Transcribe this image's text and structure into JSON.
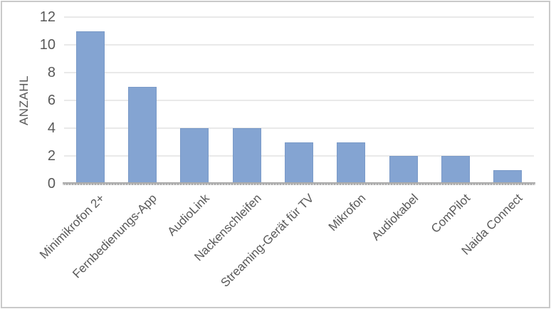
{
  "chart_data": {
    "type": "bar",
    "title": "",
    "xlabel": "",
    "ylabel": "ANZAHL",
    "categories": [
      "Minimikrofon 2+",
      "Fernbedienungs-App",
      "AudioLink",
      "Nackenschleifen",
      "Streaming-Gerät für TV",
      "Mikrofon",
      "Audiokabel",
      "ComPilot",
      "Naida Connect"
    ],
    "values": [
      11,
      7,
      4,
      4,
      3,
      3,
      2,
      2,
      1
    ],
    "ylim": [
      0,
      12
    ],
    "yticks": [
      0,
      2,
      4,
      6,
      8,
      10,
      12
    ],
    "grid": "horizontal",
    "legend_position": "none",
    "colors": {
      "bar_fill": "#84A4D2",
      "bar_edge": "#7A9AC8",
      "gridline": "#E9E9E9",
      "axis_line": "#ABABAB",
      "axis_dots": "#D2D2D2",
      "label_text": "#595959",
      "chart_border": "#C9C9C9",
      "background": "#FFFFFF"
    }
  }
}
